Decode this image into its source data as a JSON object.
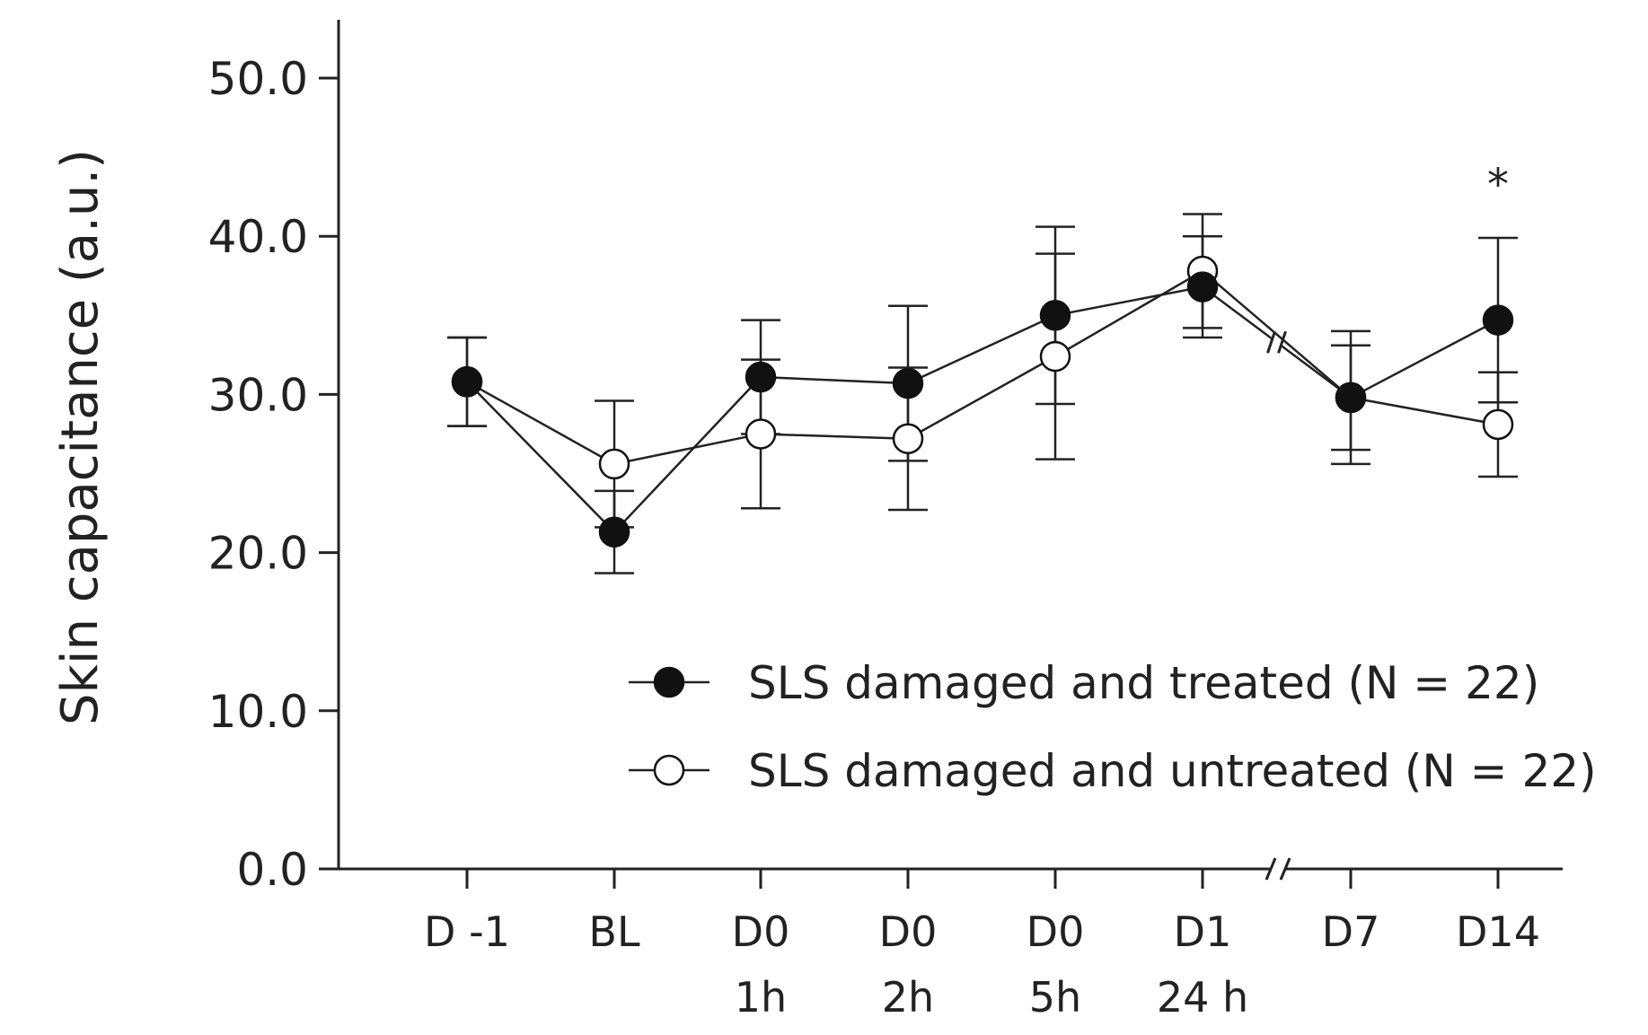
{
  "chart_data": {
    "type": "line",
    "title": "",
    "ylabel": "Skin capacitance (a.u.)",
    "xlabel": "",
    "ylim": [
      0,
      50
    ],
    "yticks": [
      "0.0",
      "10.0",
      "20.0",
      "30.0",
      "40.0",
      "50.0"
    ],
    "ytick_values": [
      0,
      10,
      20,
      30,
      40,
      50
    ],
    "categories": [
      [
        "D -1"
      ],
      [
        "BL"
      ],
      [
        "D0",
        "1h"
      ],
      [
        "D0",
        "2h"
      ],
      [
        "D0",
        "5h"
      ],
      [
        "D1",
        "24 h"
      ],
      [
        "D7"
      ],
      [
        "D14"
      ]
    ],
    "axis_break": "between D1 24 h and D7",
    "legend_position": "bottom-right",
    "grid": false,
    "series": [
      {
        "name": "SLS damaged and treated (N = 22)",
        "marker": "filled-circle",
        "values": [
          30.8,
          21.3,
          31.1,
          30.7,
          35.0,
          36.8,
          29.8,
          34.7
        ],
        "errors": [
          2.8,
          2.6,
          3.6,
          4.9,
          5.6,
          3.2,
          3.3,
          5.2
        ]
      },
      {
        "name": "SLS damaged and untreated (N = 22)",
        "marker": "open-circle",
        "values": [
          30.8,
          25.6,
          27.5,
          27.2,
          32.4,
          37.8,
          29.8,
          28.1
        ],
        "errors": [
          2.8,
          4.0,
          4.7,
          4.5,
          6.5,
          3.6,
          4.2,
          3.3
        ]
      }
    ],
    "annotations": [
      {
        "text": "*",
        "category_index": 7
      }
    ]
  }
}
